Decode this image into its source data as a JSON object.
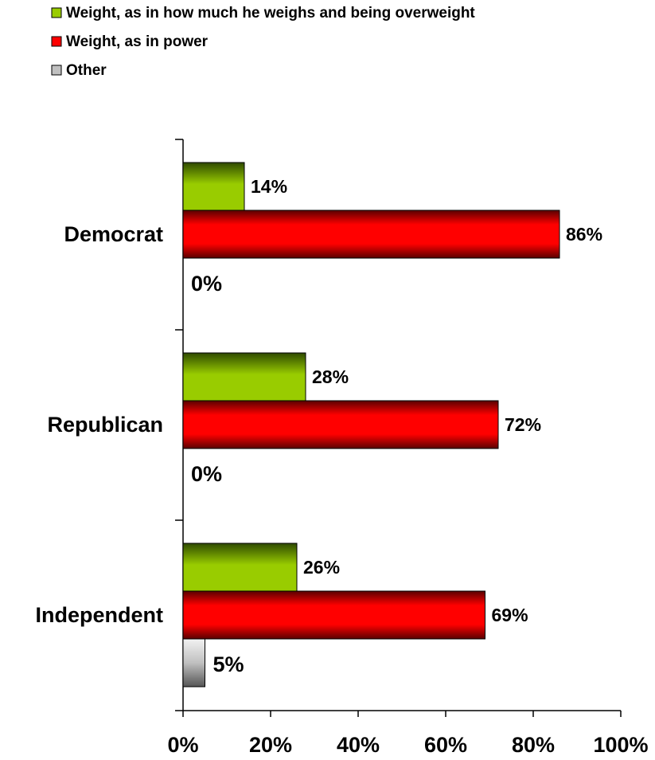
{
  "chart_data": {
    "type": "bar",
    "orientation": "horizontal",
    "categories": [
      "Democrat",
      "Republican",
      "Independent"
    ],
    "series": [
      {
        "name": "Weight, as in how much he weighs and being overweight",
        "values": [
          14,
          28,
          26
        ],
        "color": "#99cc00",
        "labels": [
          "14%",
          "28%",
          "26%"
        ]
      },
      {
        "name": "Weight, as in power",
        "values": [
          86,
          72,
          69
        ],
        "color": "#ff0000",
        "labels": [
          "86%",
          "72%",
          "69%"
        ]
      },
      {
        "name": "Other",
        "values": [
          0,
          0,
          5
        ],
        "color": "#c0c0c0",
        "labels": [
          "0%",
          "0%",
          "5%"
        ]
      }
    ],
    "x_ticks": [
      "0%",
      "20%",
      "40%",
      "60%",
      "80%",
      "100%"
    ],
    "xlim": [
      0,
      100
    ],
    "grid": false,
    "legend_position": "top-left",
    "title": "",
    "xlabel": "",
    "ylabel": ""
  }
}
